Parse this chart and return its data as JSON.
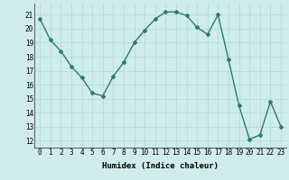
{
  "x": [
    0,
    1,
    2,
    3,
    4,
    5,
    6,
    7,
    8,
    9,
    10,
    11,
    12,
    13,
    14,
    15,
    16,
    17,
    18,
    19,
    20,
    21,
    22,
    23
  ],
  "y": [
    20.7,
    19.2,
    18.4,
    17.3,
    16.5,
    15.4,
    15.2,
    16.6,
    17.6,
    19.0,
    19.9,
    20.7,
    21.2,
    21.2,
    20.95,
    20.1,
    19.6,
    21.0,
    17.8,
    14.5,
    12.1,
    12.4,
    14.8,
    13.0
  ],
  "line_color": "#2d7a6e",
  "marker": "D",
  "marker_size": 2.0,
  "bg_color": "#ceecea",
  "grid_color": "#b0d8d5",
  "xlabel": "Humidex (Indice chaleur)",
  "ylim": [
    11.5,
    21.8
  ],
  "xlim": [
    -0.5,
    23.5
  ],
  "yticks": [
    12,
    13,
    14,
    15,
    16,
    17,
    18,
    19,
    20,
    21
  ],
  "xticks": [
    0,
    1,
    2,
    3,
    4,
    5,
    6,
    7,
    8,
    9,
    10,
    11,
    12,
    13,
    14,
    15,
    16,
    17,
    18,
    19,
    20,
    21,
    22,
    23
  ],
  "label_fontsize": 6.5,
  "tick_fontsize": 5.5,
  "linewidth": 1.0
}
